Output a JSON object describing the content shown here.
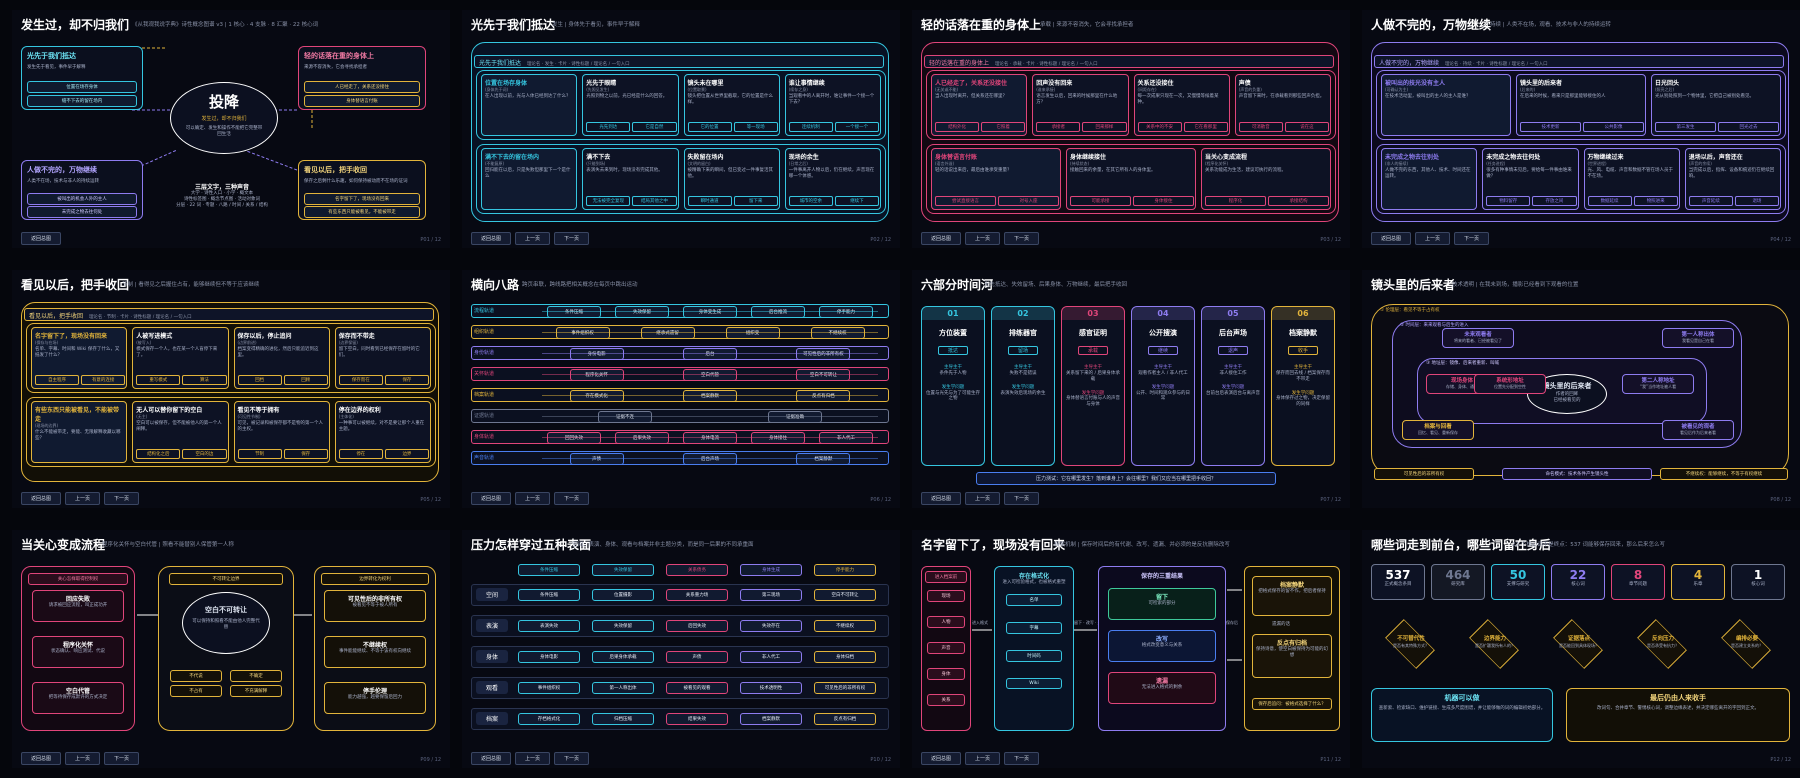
{
  "colors": {
    "cyan": "#35c6e0",
    "pink": "#e0457a",
    "yellow": "#e2b43b",
    "purple": "#8e7cf0",
    "green": "#3ec99a",
    "blue": "#4a7ef0",
    "gray": "#6e7790"
  },
  "nav": {
    "back": "返回总图",
    "prev": "上一页",
    "next": "下一页"
  },
  "s1": {
    "title": "发生过，却不归我们",
    "sub": "《从我观我说字典》诗性概念图谱 v3 | 1 核心 · 4 支脉 · 8 汇聚 · 22 核心词",
    "core": "投降",
    "core_sub": "发生过，却不归我们",
    "core_desc": "可以确定、发生和操作不能把它完整带回生活",
    "b1": "光先于我们抵达",
    "b1s": "发生先于看见，事件早于解释",
    "b1a": "位置在场存身体",
    "b1b": "缝不下去的留在场内",
    "b2": "轻的话落在重的身体上",
    "b2s": "来源不容消失，它会寻找承担者",
    "b2a": "人已经走了，关系还没接住",
    "b2b": "身体替语言付账",
    "b3": "人做不完的，万物继续",
    "b3s": "(连续)",
    "b3d": "人类不在场，技术与非人的持续运转",
    "b3a": "被叫出的机会人外的主人",
    "b3b": "未完成之物去往何处",
    "b4": "看见以后，把手收回",
    "b4s": "(伦理)",
    "b4d": "保存之后剩什么乐趣，如何保持被动而不在场的证词",
    "b4a": "名字留下了，现场没有回来",
    "b4b": "有些东西只能被看见，不能被带走",
    "c": "三层文字，三种声音",
    "c1": "大学 · 诗性入口 · 小学 · 概文本",
    "c2": "诗性标签图 · 概念节点图 · 活动对象词",
    "c3": "分层 · 22 词 · 专题 · 八路 / 时间 / 关系 / 结构",
    "page": "P01 / 12"
  },
  "s2": {
    "title": "光先于我们抵达",
    "sub": "发生 | 身体先于看见，事件早于解释",
    "hdr": "光先于我们抵达",
    "hdr_meta": "理论名 · 发生 · 卡片 · 诗性标题 / 理论名 / 一句入口",
    "cards": [
      {
        "t": "位置在场存身体",
        "d": "(身体先于词)",
        "b": "在人出现以前，光与人体已经到达了什么？"
      },
      {
        "t": "光先于眼睛",
        "d": "(先照见发生)",
        "b": "光照到物之以前，光已经是什么的回答。",
        "p": [
          "光先到达",
          "它是自然"
        ]
      },
      {
        "t": "镜头未在哪里",
        "d": "(位置取景)",
        "b": "镜头把位置从世界里截取，它的位置是什么样。",
        "p": [
          "它的位置",
          "等一现场"
        ]
      },
      {
        "t": "谁让事情继续",
        "d": "(续存之身)",
        "b": "当观看中的人离开时，谁让事件一个接一个下去？",
        "p": [
          "连续机制",
          "一个接一个"
        ]
      },
      {
        "t": "满不下去的留在场内",
        "d": "(不能复原)",
        "b": "回归能在以后，只是失败但那里下一个是什么"
      },
      {
        "t": "满不下去",
        "d": "(只能到场)",
        "b": "表演失去来到时，现场没有完成其他。",
        "p": [
          "无法被完全复现",
          "结局其他之中"
        ]
      },
      {
        "t": "失败留在场内",
        "d": "(文明的留白)",
        "b": "被精确下来的瞬间，但已变过一件事复活其他。",
        "p": [
          "瞬时通道",
          "留下来"
        ]
      },
      {
        "t": "现场的余生",
        "d": "(日常之后)",
        "b": "一件事离开人物以后，仍在继续，声音现在哪一个体感。",
        "p": [
          "城市的空余",
          "继续下"
        ]
      }
    ],
    "page": "P02 / 12"
  },
  "s3": {
    "title": "轻的话落在重的身体上",
    "sub": "承载 | 来源不容消失，它会寻找承担者",
    "hdr": "轻的话落在重的身体上",
    "hdr_meta": "理论名 · 承载 · 卡片 · 诗性标题 / 理论名 / 一句入口",
    "cards": [
      {
        "t": "人已经走了，关系还没接住",
        "d": "(无关或不能)",
        "b": "当人出现时离开，但关系还在哪里？",
        "p": [
          "结构外化",
          "它照着"
        ]
      },
      {
        "t": "回声没有回来",
        "d": "(谁来承接)",
        "b": "语言发生以后，回来的时候那里在什么地方？",
        "p": [
          "承接者",
          "回来那样"
        ]
      },
      {
        "t": "关系还没接住",
        "d": "(间距存在)",
        "b": "每一次成果只现在一次，又慢慢等候着某种。",
        "p": [
          "关系中的不安",
          "它在看那里"
        ]
      },
      {
        "t": "声债",
        "d": "(声音的负重)",
        "b": "声音留下来时，在承载看到那些回声负担。",
        "p": [
          "可消散音",
          "说在这"
        ]
      },
      {
        "t": "身体替语言付账",
        "d": "(语言外溢)",
        "b": "轻的话说出来后，最后由谁承受重量？",
        "p": [
          "尝试直接语言",
          "对号入座"
        ]
      },
      {
        "t": "身体继续接住",
        "d": "(持续状态)",
        "b": "接触回来的余量，在其它所有人的身体里。",
        "p": [
          "可能承接",
          "身体接住"
        ]
      },
      {
        "t": "当关心变成流程",
        "d": "(程序化关怀)",
        "b": "关系功能成为生活，建议可执行的流程。",
        "p": [
          "程序化",
          "承接结构"
        ]
      }
    ],
    "page": "P03 / 12"
  },
  "s4": {
    "title": "人做不完的，万物继续",
    "sub": "持续 | 人类不在场，观看、技术与非人的持续运转",
    "hdr": "人做不完的，万物继续",
    "hdr_meta": "理论名 · 持续 · 卡片 · 诗性标题 / 理论名 / 一句入口",
    "cards": [
      {
        "t": "被叫出的技光没有主人",
        "d": "(可确认为主)",
        "b": "在技术活动里，被叫出的主人的主人是谁？"
      },
      {
        "t": "镜头里的后来者",
        "d": "(后来的)",
        "b": "在后来的时候，看来只是那里能够接住的人",
        "p": [
          "技术更新",
          "公共影像"
        ]
      },
      {
        "t": "日光回头",
        "d": "(照亮之后)",
        "b": "光从别处照到一个物体里，它把自己被别处看见。",
        "p": [
          "第三发生",
          "回光过去"
        ]
      },
      {
        "t": "未完成之物去往别处",
        "d": "(非人的接续)",
        "b": "人做不完的东西，其他人、技术、时间还在运转。"
      },
      {
        "t": "未完成之物去往何处",
        "d": "(任务进程)",
        "b": "很多有种事情未见后，要给每一件事由谁来做？",
        "p": [
          "物料留存",
          "存放之间"
        ]
      },
      {
        "t": "万物继续过来",
        "d": "(世界进程)",
        "b": "光、风、电缆、声音和数据不管在场人员于不在场。",
        "p": [
          "数据延续",
          "物照进来"
        ]
      },
      {
        "t": "退场以后，声音还在",
        "d": "(声音的余续)",
        "b": "当完成以后，指挥、设备和痕迹仍在继续回响。",
        "p": [
          "声音延续",
          "退场"
        ]
      }
    ],
    "page": "P04 / 12"
  },
  "s5": {
    "title": "看见以后，把手收回",
    "sub": "节制 | 看得见之后握住占有，能够继续但不等于应该继续",
    "hdr": "看见以后，把手收回",
    "hdr_meta": "理论名 · 节制 · 卡片 · 诗性标题 / 理论名 / 一句入口",
    "cards": [
      {
        "t": "名字留下了，现场没有回来",
        "d": "(保存与在场)",
        "b": "名单、字幕、时间和 Wiki 保存了什么，又抵发了什么？",
        "p": [
          "自主程序",
          "有意的连接"
        ]
      },
      {
        "t": "人被写进模式",
        "d": "(被写入)",
        "b": "模式保存一个人，也在某一个人盲停下来了。",
        "p": [
          "重写模式",
          "算法"
        ]
      },
      {
        "t": "保存以后，停止追问",
        "d": "(边界前进)",
        "b": "档案变得精确的进化，然后只能追近到这里。",
        "p": [
          "回档",
          "回顾"
        ]
      },
      {
        "t": "保存而不带走",
        "d": "(边界保留)",
        "b": "留下空白，同时看到已经保存在留时的它们。",
        "p": [
          "保存而在",
          "保存"
        ]
      },
      {
        "t": "有些东西只能被看见，不能被带走",
        "d": "(现场的边界)",
        "b": "什么不能被带走，要能、无限解释收藏以哪些？"
      },
      {
        "t": "无人可以替你留下的空白",
        "d": "(无主)",
        "b": "空白可以被保存，但不能被他人的第一个人阐释。",
        "p": [
          "结构化之后",
          "空白的边"
        ]
      },
      {
        "t": "看见不等于拥有",
        "d": "(可见性节制)",
        "b": "可见，被记录和被保存都不是物的第一个人的主权。",
        "p": [
          "节制",
          "保存"
        ]
      },
      {
        "t": "停在边界的权利",
        "d": "(主体化)",
        "b": "一种事可以被继续，对不是要让那个人重在主题。",
        "p": [
          "停在",
          "边界"
        ]
      }
    ],
    "page": "P05 / 12"
  },
  "s6": {
    "title": "横向八路",
    "sub": "跨页串联，跨线路把相关概念在每页中跳出运动",
    "rows": [
      {
        "n": "流程轨道",
        "c": "cyan",
        "items": [
          "条件压缩",
          "失效保留",
          "身体变生成",
          "后台推流",
          "停手能力"
        ]
      },
      {
        "n": "组织轨道",
        "c": "yellow",
        "items": [
          "事件组织权",
          "继承式遗留",
          "组织变",
          "不继续权"
        ]
      },
      {
        "n": "身份轨道",
        "c": "purple",
        "items": [
          "身份电影",
          "后台",
          "可见性后的非所有权"
        ]
      },
      {
        "n": "关怀轨道",
        "c": "pink",
        "items": [
          "程序化关怀",
          "空白代管",
          "空白不可转让"
        ]
      },
      {
        "n": "档案轨道",
        "c": "yellow",
        "items": [
          "存在模式化",
          "档案静默",
          "反点有归档"
        ]
      },
      {
        "n": "证据轨道",
        "c": "gray",
        "items": [
          "证据不连",
          "证据准确"
        ]
      },
      {
        "n": "身体轨道",
        "c": "pink",
        "items": [
          "回回失效",
          "后果失效",
          "身体电流",
          "身体接住",
          "非人代工"
        ]
      },
      {
        "n": "声音轨道",
        "c": "blue",
        "items": [
          "声债",
          "后台声场",
          "档案静默"
        ]
      }
    ],
    "page": "P06 / 12"
  },
  "s7": {
    "title": "六部分时间河",
    "sub": "光先抵达、失效留场、后果身体、万物继续，最后把手收回",
    "cols": [
      {
        "n": "01",
        "t": "方位装置",
        "tag": "抵达",
        "a": "主导主干",
        "ad": "条件先于人物",
        "b": "发生学问题",
        "bd": "位置与光先与为了可能生存之物",
        "c": "cyan"
      },
      {
        "n": "02",
        "t": "排练器官",
        "tag": "留场",
        "a": "主导主干",
        "ad": "失败不是错误",
        "b": "发生学问题",
        "bd": "表演失效后现场的余生",
        "c": "cyan"
      },
      {
        "n": "03",
        "t": "感官证明",
        "tag": "承载",
        "a": "主导主干",
        "ad": "关系留下来的 / 后果身体承载",
        "b": "发生学问题",
        "bd": "身体替语言付账与人的声音与身体",
        "c": "pink"
      },
      {
        "n": "04",
        "t": "公开搜演",
        "tag": "继续",
        "a": "主导主干",
        "ad": "观看作者主人 / 非人代工",
        "b": "发生学问题",
        "bd": "公开、时间和观众参与的日常",
        "c": "purple"
      },
      {
        "n": "05",
        "t": "后台声场",
        "tag": "退声",
        "a": "主导主干",
        "ad": "非人接住工作",
        "b": "发生学问题",
        "bd": "台前台后表演后台与离声音",
        "c": "purple"
      },
      {
        "n": "06",
        "t": "档案静默",
        "tag": "收手",
        "a": "主导主干",
        "ad": "保存而回去线 / 档案保存而不带走",
        "b": "发生学问题",
        "bd": "身体保存过之物，决定保留的同样",
        "c": "yellow"
      }
    ],
    "q": "压力测试：它在哪里发生？落到谁身上？会往哪里？我们又应当在哪里把手收回？",
    "page": "P07 / 12"
  },
  "s8": {
    "title": "镜头里的后来者",
    "sub": "技术透明 | 在我未到场，播影已经看到下观看的位置",
    "ring1": "① 伦理层：看见不等于占有权",
    "ring2": "② 时间层：来来观看与后生的进入",
    "ring3": "③ 地址层：镜像、后来者重新、叫喊",
    "core": "镜头里的后来者",
    "core_s": "作者的回眸",
    "core_d": "已经被看见的",
    "n1": "未来观看者",
    "n1s": "将来的看者、已经被看见了",
    "n2": "第一人称出体",
    "n2s": "我看见是自己在看",
    "n3": "现场身体",
    "n3s": "存储、身体、通道",
    "n4": "系统形地址",
    "n4s": "位置先分配到空性",
    "n5": "第二人称地址",
    "n5s": "“我”当作地址被人看",
    "n6": "档案与回看",
    "n6s": "回忆、看见、重新保存",
    "n7": "被看见的观者",
    "n7s": "看见后作为后来者看",
    "b1": "可见性后的非所有权",
    "b2": "命名模式：技术条件产生镜头性",
    "b3": "不继续权：能够继续，不等于有权继续",
    "page": "P08 / 12"
  },
  "s9": {
    "title": "当关心变成流程",
    "sub": "程序化关怀与空白代管 | 照看不能替别人保管第一人称",
    "c1": "关心怎样取得控制权",
    "c1a": "回应失败",
    "c1as": "请求被回应流程，叫正成功开",
    "c1b": "程序化关怀",
    "c1bs": "状态确认、响应测试、代说",
    "c1c": "空白代管",
    "c1cs": "把等待保存成默许的方式决定",
    "c2": "不可转让边界",
    "core": "空白不可转让",
    "core_s": "可以保持和照看不能由他人完整代替",
    "t1": "不代说",
    "t2": "不确定",
    "t3": "不占有",
    "t4": "不充满解释",
    "c3": "边界转化为权利",
    "c3a": "可见性后的非所有权",
    "c3as": "被看见不等于被人所有",
    "c3b": "不继续权",
    "c3bs": "事件能能继续、不等于该有权向继续",
    "c3c": "停手伦理",
    "c3cs": "能力越强，越要保留后回力",
    "page": "P09 / 12"
  },
  "s10": {
    "title": "压力怎样穿过五种表面",
    "sub": "空间、表演、身体、观看与档案并非主题分类，而是同一后果的不同承重面",
    "heads": [
      "条件压缩",
      "失效保留",
      "关系债务",
      "身体生成",
      "停手能力"
    ],
    "rows": [
      {
        "n": "空间",
        "items": [
          "条件压缩",
          "位置摄影",
          "关系重力场",
          "第三现场",
          "空白不可转让"
        ]
      },
      {
        "n": "表演",
        "items": [
          "表演失效",
          "失效保留",
          "后回失效",
          "失效存在",
          "不继续权"
        ]
      },
      {
        "n": "身体",
        "items": [
          "身体电影",
          "后果身体承载",
          "声债",
          "非人代工",
          "身体归档"
        ]
      },
      {
        "n": "观看",
        "items": [
          "事件组织权",
          "第一人称出体",
          "被看见的观看",
          "技术透明性",
          "可见性后的非所有权"
        ]
      },
      {
        "n": "档案",
        "items": [
          "存档格式化",
          "归档压缩",
          "结果失效",
          "档案静默",
          "反点有归档"
        ]
      }
    ],
    "page": "P10 / 12"
  },
  "s11": {
    "title": "名字留下了，现场没有回来",
    "sub": "档案机制 | 保存时间后的有代谢、改写、遗漏、并必须的是反抗删除改写",
    "col1": "进入档案前",
    "items1": [
      "现场",
      "人物",
      "声音",
      "身体",
      "关系"
    ],
    "l1": "进入格式",
    "col2": "存在格式化",
    "col2s": "进入可检验格式，也被格式重塑",
    "items2": [
      "名单",
      "字幕",
      "时间码",
      "Wiki"
    ],
    "l2": "留下 · 改写 · 遗漏",
    "col3": "保存的三重结果",
    "r1": "留下",
    "r1s": "可检索的部分",
    "r2": "改写",
    "r2s": "格式改变意义与关系",
    "r3": "遗漏",
    "r3s": "无法进入格式的剩余",
    "col4a": "档案静默",
    "col4as": "把格式保存的留不作，把后者保持",
    "col4m": "遗漏的话",
    "col4b": "反点有归档",
    "col4bs": "保持诗意，使空白被保持为可能的幻想",
    "col4c": "保存后追问：被格式选择了什么？",
    "l3": "保存后",
    "page": "P11 / 12"
  },
  "s12": {
    "title": "哪些词走到前台，哪些词留在身后",
    "sub": "22 个核心词不是终点：537 词能够保存回来，那么后来怎么写",
    "stats": [
      {
        "v": "537",
        "l": "正式概念条目",
        "c": "gray"
      },
      {
        "v": "464",
        "l": "研究库",
        "c": "gray"
      },
      {
        "v": "50",
        "l": "支撑与研究",
        "c": "cyan"
      },
      {
        "v": "22",
        "l": "核心词",
        "c": "purple"
      },
      {
        "v": "8",
        "l": "章节问题",
        "c": "pink"
      },
      {
        "v": "4",
        "l": "乐章",
        "c": "yellow"
      },
      {
        "v": "1",
        "l": "核心词",
        "c": "gray"
      }
    ],
    "d": [
      {
        "t": "不可替代性",
        "s": "是否有其特殊方式？",
        "c": "yellow"
      },
      {
        "t": "边界能力",
        "s": "是否扩疆我所有人的？",
        "c": "yellow"
      },
      {
        "t": "证据落点",
        "s": "是否能回到具体现场？",
        "c": "yellow"
      },
      {
        "t": "反向压力",
        "s": "是否承受有抗力？",
        "c": "yellow"
      },
      {
        "t": "编排必要",
        "s": "是否建立关系的？",
        "c": "yellow"
      }
    ],
    "b1": "机器可以做",
    "b1s": "查新索、检索缺口、维护链接、生成多尺度图谱，并让能够做的词的编辑初始部分。",
    "b2": "最后仍由人来收手",
    "b2s": "改词句、合并章节、警惕核心词，调整边缘表述，并决定哪些离开的字回到正文。",
    "page": "P12 / 12"
  }
}
